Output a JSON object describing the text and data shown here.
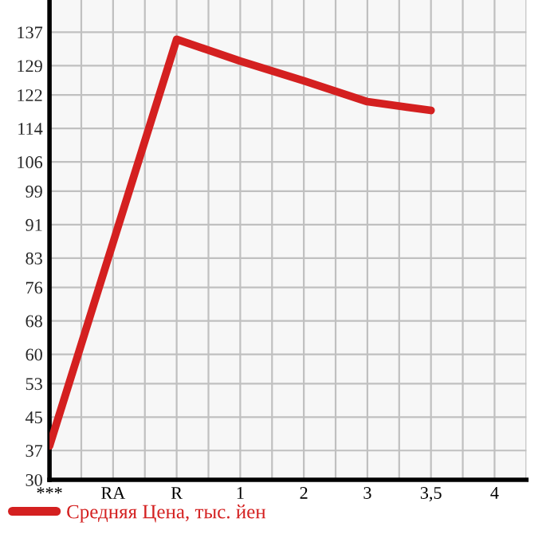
{
  "chart_data": {
    "type": "line",
    "categories": [
      "***",
      "RA",
      "R",
      "1",
      "2",
      "3",
      "3,5",
      "4"
    ],
    "series": [
      {
        "name": "Средняя Цена, тыс. йен",
        "color": "#d42020",
        "values": [
          38.1,
          86.7,
          135.3,
          130.1,
          125.4,
          120.4,
          118.3,
          null
        ]
      }
    ],
    "ylim": [
      30,
      144.7
    ],
    "yticks": [
      30,
      37,
      45,
      53,
      60,
      68,
      76,
      83,
      91,
      99,
      106,
      114,
      122,
      129,
      137
    ],
    "grid": true,
    "legend": "bottom",
    "marker": "none",
    "line_style": "solid"
  }
}
